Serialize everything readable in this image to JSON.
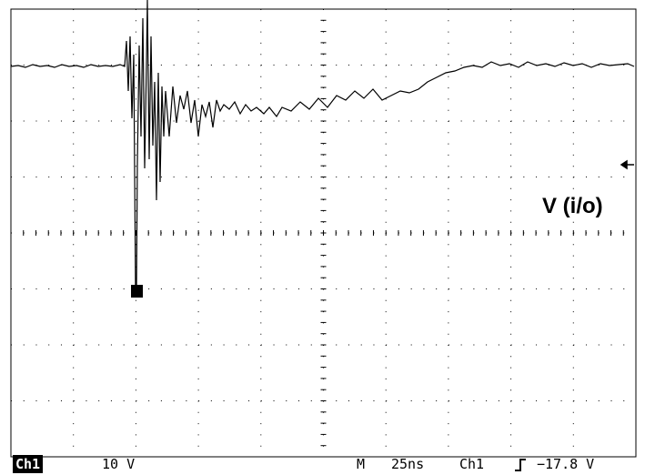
{
  "trace_label": "V (i/o)",
  "status_bar": {
    "channel": "Ch1",
    "scale": "10 V",
    "mode": "M",
    "timebase": "25ns",
    "trigger_source": "Ch1",
    "trigger_level": "−17.8 V"
  }
}
